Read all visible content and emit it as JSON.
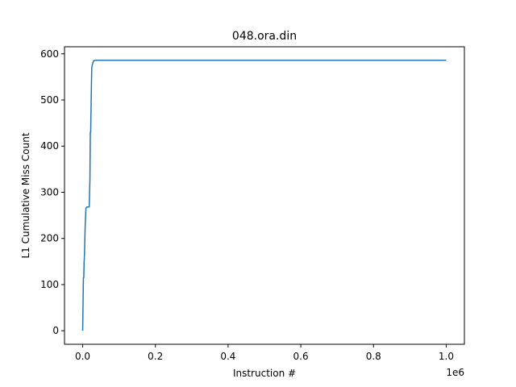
{
  "chart_data": {
    "type": "line",
    "title": "048.ora.din",
    "xlabel": "Instruction #",
    "ylabel": "L1 Cumulative Miss Count",
    "x_offset_label": "1e6",
    "xlim": [
      -0.05,
      1.05
    ],
    "ylim": [
      -29.3,
      615.3
    ],
    "xticks": [
      0.0,
      0.2,
      0.4,
      0.6,
      0.8,
      1.0
    ],
    "xtick_labels": [
      "0.0",
      "0.2",
      "0.4",
      "0.6",
      "0.8",
      "1.0"
    ],
    "yticks": [
      0,
      100,
      200,
      300,
      400,
      500,
      600
    ],
    "ytick_labels": [
      "0",
      "100",
      "200",
      "300",
      "400",
      "500",
      "600"
    ],
    "grid": false,
    "series": [
      {
        "color": "#1f77b4",
        "x": [
          0.0,
          0.001,
          0.002,
          0.003,
          0.004,
          0.005,
          0.006,
          0.007,
          0.009,
          0.011,
          0.012,
          0.013,
          0.018,
          0.019,
          0.02,
          0.021,
          0.022,
          0.023,
          0.024,
          0.025,
          0.026,
          0.028,
          0.03,
          0.035,
          0.04,
          0.1,
          0.5,
          1.0
        ],
        "y": [
          0,
          60,
          115,
          115,
          150,
          165,
          200,
          230,
          265,
          268,
          268,
          268,
          268,
          300,
          330,
          430,
          430,
          480,
          530,
          570,
          575,
          580,
          585,
          586,
          586,
          586,
          586,
          586
        ]
      }
    ]
  }
}
